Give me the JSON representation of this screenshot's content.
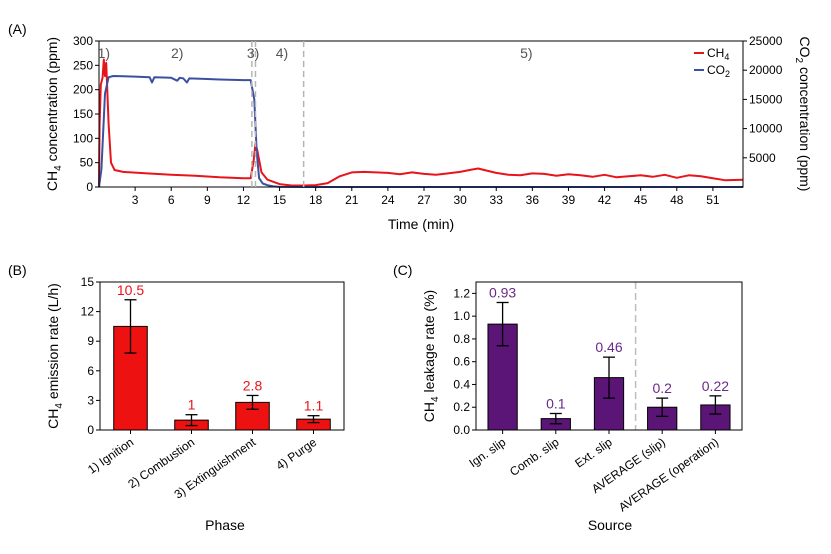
{
  "chart_data": [
    {
      "panel_label": "(A)",
      "type": "line",
      "xlabel": "Time (min)",
      "ylabel_left": "CH4 concentration (ppm)",
      "ylabel_right": "CO2 concentration (ppm)",
      "xlim": [
        0,
        53.5
      ],
      "ylim_left": [
        0,
        300
      ],
      "ylim_right": [
        0,
        25000
      ],
      "x_ticks": [
        "3",
        "6",
        "9",
        "12",
        "15",
        "18",
        "21",
        "24",
        "27",
        "30",
        "33",
        "36",
        "39",
        "42",
        "45",
        "48",
        "51"
      ],
      "y_ticks_left": [
        "0",
        "50",
        "100",
        "150",
        "200",
        "250",
        "300"
      ],
      "y_ticks_right": [
        "5000",
        "10000",
        "15000",
        "20000",
        "25000"
      ],
      "phase_labels": [
        "1)",
        "2)",
        "3)",
        "4)",
        "5)"
      ],
      "phase_boundaries": [
        12.7,
        13.0,
        17.0
      ],
      "legend_position": "top-right",
      "series": [
        {
          "name": "CH4",
          "axis": "left",
          "color": "#e8141b",
          "points": [
            [
              0,
              0
            ],
            [
              0.05,
              130
            ],
            [
              0.15,
              210
            ],
            [
              0.3,
              225
            ],
            [
              0.4,
              262
            ],
            [
              0.5,
              228
            ],
            [
              0.6,
              255
            ],
            [
              0.8,
              130
            ],
            [
              1.0,
              50
            ],
            [
              1.3,
              35
            ],
            [
              2,
              31
            ],
            [
              4,
              28
            ],
            [
              6,
              25
            ],
            [
              8,
              23
            ],
            [
              10,
              20
            ],
            [
              12,
              18
            ],
            [
              12.6,
              18
            ],
            [
              12.85,
              55
            ],
            [
              13.0,
              90
            ],
            [
              13.15,
              75
            ],
            [
              13.5,
              30
            ],
            [
              14,
              15
            ],
            [
              15,
              6
            ],
            [
              16,
              3
            ],
            [
              17,
              3
            ],
            [
              18,
              4
            ],
            [
              19,
              8
            ],
            [
              20,
              22
            ],
            [
              21,
              30
            ],
            [
              22,
              31
            ],
            [
              24,
              29
            ],
            [
              25,
              26
            ],
            [
              26,
              30
            ],
            [
              27,
              27
            ],
            [
              28,
              25
            ],
            [
              29,
              28
            ],
            [
              30,
              31
            ],
            [
              31,
              36
            ],
            [
              31.5,
              38
            ],
            [
              32,
              35
            ],
            [
              33,
              29
            ],
            [
              34,
              25
            ],
            [
              35,
              24
            ],
            [
              36,
              28
            ],
            [
              37,
              27
            ],
            [
              38,
              23
            ],
            [
              39,
              26
            ],
            [
              40,
              24
            ],
            [
              41,
              21
            ],
            [
              42,
              25
            ],
            [
              43,
              20
            ],
            [
              44,
              22
            ],
            [
              45,
              24
            ],
            [
              46,
              21
            ],
            [
              47,
              25
            ],
            [
              48,
              19
            ],
            [
              49,
              24
            ],
            [
              50,
              22
            ],
            [
              51,
              18
            ],
            [
              52,
              14
            ],
            [
              53.5,
              15
            ]
          ]
        },
        {
          "name": "CO2",
          "axis": "right",
          "color": "#3c50a0",
          "points": [
            [
              0,
              0
            ],
            [
              0.2,
              3000
            ],
            [
              0.5,
              16000
            ],
            [
              0.8,
              18800
            ],
            [
              1.2,
              19000
            ],
            [
              3,
              18900
            ],
            [
              4.2,
              18800
            ],
            [
              4.4,
              17900
            ],
            [
              4.6,
              18800
            ],
            [
              6,
              18700
            ],
            [
              6.5,
              18200
            ],
            [
              6.7,
              18700
            ],
            [
              7,
              18600
            ],
            [
              7.3,
              17900
            ],
            [
              7.5,
              18600
            ],
            [
              9,
              18500
            ],
            [
              10,
              18400
            ],
            [
              12,
              18300
            ],
            [
              12.6,
              18300
            ],
            [
              12.9,
              15000
            ],
            [
              13.1,
              6000
            ],
            [
              13.3,
              1500
            ],
            [
              13.6,
              600
            ],
            [
              14,
              300
            ],
            [
              14.5,
              100
            ],
            [
              15,
              20
            ],
            [
              17,
              0
            ],
            [
              53.5,
              0
            ]
          ]
        }
      ]
    },
    {
      "panel_label": "(B)",
      "type": "bar",
      "xlabel": "Phase",
      "ylabel": "CH4 emission rate (L/h)",
      "ylim": [
        0,
        15
      ],
      "y_ticks": [
        "0",
        "3",
        "6",
        "9",
        "12",
        "15"
      ],
      "categories": [
        "1) Ignition",
        "2) Combustion",
        "3) Extinguishment",
        "4) Purge"
      ],
      "values": [
        10.5,
        1.0,
        2.8,
        1.1
      ],
      "value_labels": [
        "10.5",
        "1",
        "2.8",
        "1.1"
      ],
      "error": [
        2.7,
        0.55,
        0.7,
        0.35
      ],
      "bar_color": "#ee1111",
      "label_color": "#e8141b"
    },
    {
      "panel_label": "(C)",
      "type": "bar",
      "xlabel": "Source",
      "ylabel": "CH4 leakage rate (%)",
      "ylim": [
        0,
        1.3
      ],
      "y_ticks": [
        "0.0",
        "0.2",
        "0.4",
        "0.6",
        "0.8",
        "1.0",
        "1.2"
      ],
      "categories": [
        "Ign. slip",
        "Comb. slip",
        "Ext. slip",
        "AVERAGE (slip)",
        "AVERAGE (operation)"
      ],
      "values": [
        0.93,
        0.1,
        0.46,
        0.2,
        0.22
      ],
      "value_labels": [
        "0.93",
        "0.1",
        "0.46",
        "0.2",
        "0.22"
      ],
      "error": [
        0.19,
        0.045,
        0.18,
        0.08,
        0.08
      ],
      "bar_color": "#5b1577",
      "label_color": "#6a2a8a",
      "divider_after_index": 2
    }
  ]
}
